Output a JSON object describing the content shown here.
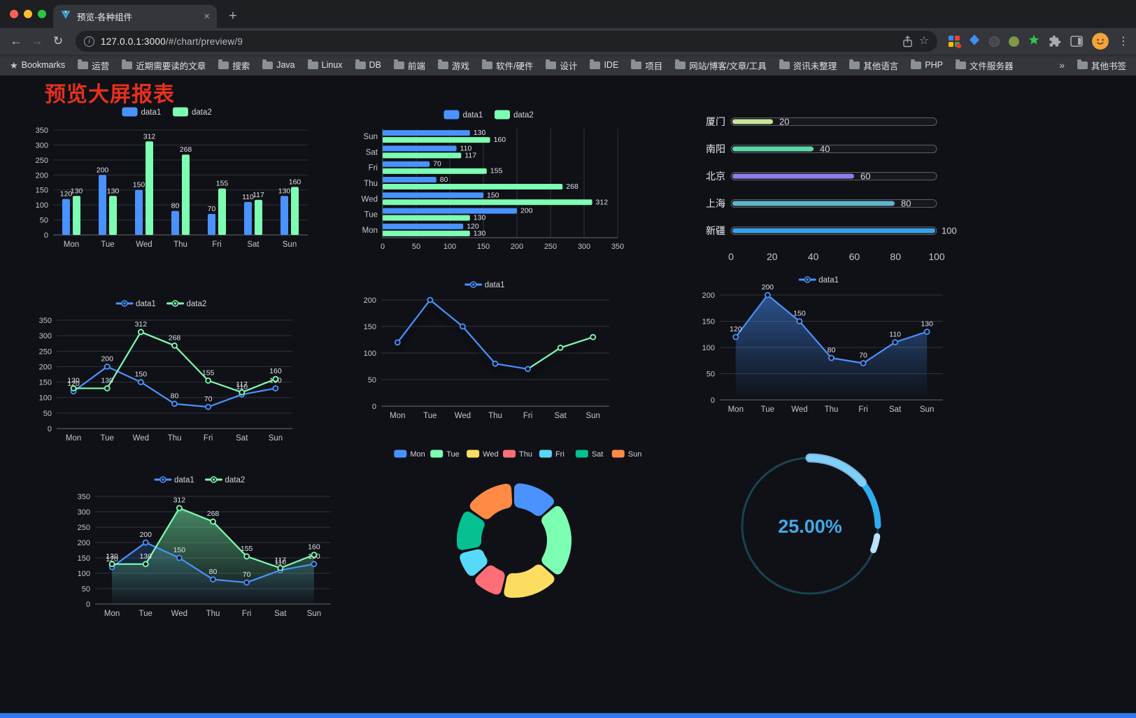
{
  "browser": {
    "tab": {
      "title": "预览-各种组件"
    },
    "url_host": "127.0.0.1:3000",
    "url_path": "/#/chart/preview/9",
    "icons": {
      "back": "←",
      "forward": "→",
      "reload": "↻",
      "close": "×",
      "new_tab": "+",
      "menu": "⋮",
      "star": "☆",
      "bookmarks_star": "★",
      "info": "i"
    },
    "bookmarks": {
      "label": "Bookmarks",
      "items": [
        "运营",
        "近期需要读的文章",
        "搜索",
        "Java",
        "Linux",
        "DB",
        "前端",
        "游戏",
        "软件/硬件",
        "设计",
        "IDE",
        "项目",
        "网站/博客/文章/工具",
        "资讯未整理",
        "其他语言",
        "PHP",
        "文件服务器"
      ],
      "overflow": "»",
      "other": "其他书签"
    }
  },
  "page": {
    "title": "预览大屏报表",
    "colors": {
      "title": "#e7301c",
      "footer_bar": "#2b7de9",
      "background": "#0f1117"
    }
  },
  "chart_data": [
    {
      "id": "bar1",
      "type": "bar",
      "categories": [
        "Mon",
        "Tue",
        "Wed",
        "Thu",
        "Fri",
        "Sat",
        "Sun"
      ],
      "series": [
        {
          "name": "data1",
          "color": "#4992ff",
          "values": [
            120,
            200,
            150,
            80,
            70,
            110,
            130
          ]
        },
        {
          "name": "data2",
          "color": "#7cffb2",
          "values": [
            130,
            130,
            312,
            268,
            155,
            117,
            160
          ]
        }
      ],
      "ylim": [
        0,
        350
      ],
      "yticks": [
        0,
        50,
        100,
        150,
        200,
        250,
        300,
        350
      ],
      "value_labels": true,
      "legend_position": "top",
      "grid": true
    },
    {
      "id": "hbar1",
      "type": "hbar",
      "categories": [
        "Mon",
        "Tue",
        "Wed",
        "Thu",
        "Fri",
        "Sat",
        "Sun"
      ],
      "series": [
        {
          "name": "data1",
          "color": "#4992ff",
          "values": [
            120,
            200,
            150,
            80,
            70,
            110,
            130
          ]
        },
        {
          "name": "data2",
          "color": "#7cffb2",
          "values": [
            130,
            130,
            312,
            268,
            155,
            117,
            160
          ]
        }
      ],
      "xlim": [
        0,
        350
      ],
      "xticks": [
        0,
        50,
        100,
        150,
        200,
        250,
        300,
        350
      ],
      "value_labels": true,
      "legend_position": "top",
      "grid": true
    },
    {
      "id": "capsule1",
      "type": "capsule-bar",
      "categories": [
        "厦门",
        "南阳",
        "北京",
        "上海",
        "新疆"
      ],
      "values": [
        20,
        40,
        60,
        80,
        100
      ],
      "colors": [
        "#c8e59b",
        "#5ad8a6",
        "#8a7fe8",
        "#5fb5c9",
        "#3ba2e8"
      ],
      "xlim": [
        0,
        100
      ],
      "xticks": [
        0,
        20,
        40,
        60,
        80,
        100
      ],
      "value_labels": true
    },
    {
      "id": "line2",
      "type": "line",
      "categories": [
        "Mon",
        "Tue",
        "Wed",
        "Thu",
        "Fri",
        "Sat",
        "Sun"
      ],
      "series": [
        {
          "name": "data1",
          "color": "#4992ff",
          "values": [
            120,
            200,
            150,
            80,
            70,
            110,
            130
          ],
          "labels": true
        },
        {
          "name": "data2",
          "color": "#7cffb2",
          "values": [
            130,
            130,
            312,
            268,
            155,
            117,
            160
          ],
          "labels": true
        }
      ],
      "ylim": [
        0,
        350
      ],
      "yticks": [
        0,
        50,
        100,
        150,
        200,
        250,
        300,
        350
      ],
      "legend_position": "top",
      "grid": true
    },
    {
      "id": "lineseg",
      "type": "line",
      "shadow": true,
      "categories": [
        "Mon",
        "Tue",
        "Wed",
        "Thu",
        "Fri",
        "Sat",
        "Sun"
      ],
      "series": [
        {
          "name": "data1",
          "color": "#4992ff",
          "values": [
            120,
            200,
            150,
            80,
            70,
            110,
            130
          ],
          "segment_colors": [
            "#4992ff",
            "#4992ff",
            "#4992ff",
            "#4992ff",
            "#7cffb2",
            "#7cffb2"
          ],
          "point_colors": [
            "#4992ff",
            "#4992ff",
            "#4992ff",
            "#4992ff",
            "#4992ff",
            "#7cffb2",
            "#7cffb2"
          ],
          "labels": false
        }
      ],
      "ylim": [
        0,
        200
      ],
      "yticks": [
        0,
        50,
        100,
        150,
        200
      ],
      "legend_position": "top",
      "grid": true
    },
    {
      "id": "area1",
      "type": "line",
      "categories": [
        "Mon",
        "Tue",
        "Wed",
        "Thu",
        "Fri",
        "Sat",
        "Sun"
      ],
      "series": [
        {
          "name": "data1",
          "color": "#4992ff",
          "values": [
            120,
            200,
            150,
            80,
            70,
            110,
            130
          ],
          "area": "strong",
          "labels": true
        }
      ],
      "ylim": [
        0,
        200
      ],
      "yticks": [
        0,
        50,
        100,
        150,
        200
      ],
      "legend_position": "top",
      "grid": true
    },
    {
      "id": "area2",
      "type": "line",
      "categories": [
        "Mon",
        "Tue",
        "Wed",
        "Thu",
        "Fri",
        "Sat",
        "Sun"
      ],
      "series": [
        {
          "name": "data1",
          "color": "#4992ff",
          "values": [
            120,
            200,
            150,
            80,
            70,
            110,
            130
          ],
          "area": "faint",
          "labels": true
        },
        {
          "name": "data2",
          "color": "#7cffb2",
          "values": [
            130,
            130,
            312,
            268,
            155,
            117,
            160
          ],
          "area": "strong",
          "labels": true
        }
      ],
      "ylim": [
        0,
        350
      ],
      "yticks": [
        0,
        50,
        100,
        150,
        200,
        250,
        300,
        350
      ],
      "legend_position": "top",
      "grid": true
    },
    {
      "id": "donut1",
      "type": "pie",
      "labels": [
        "Mon",
        "Tue",
        "Wed",
        "Thu",
        "Fri",
        "Sat",
        "Sun"
      ],
      "values": [
        120,
        200,
        150,
        80,
        70,
        110,
        130
      ],
      "colors": [
        "#4992ff",
        "#7cffb2",
        "#fddd60",
        "#ff6e76",
        "#58d9f9",
        "#05c091",
        "#ff8a45"
      ],
      "legend_position": "top"
    },
    {
      "id": "gauge1",
      "type": "gauge",
      "value": 25,
      "label": "25.00%",
      "color": "#2fadee",
      "track_color": "#1a4350",
      "text_color": "#3fa9e9"
    }
  ]
}
